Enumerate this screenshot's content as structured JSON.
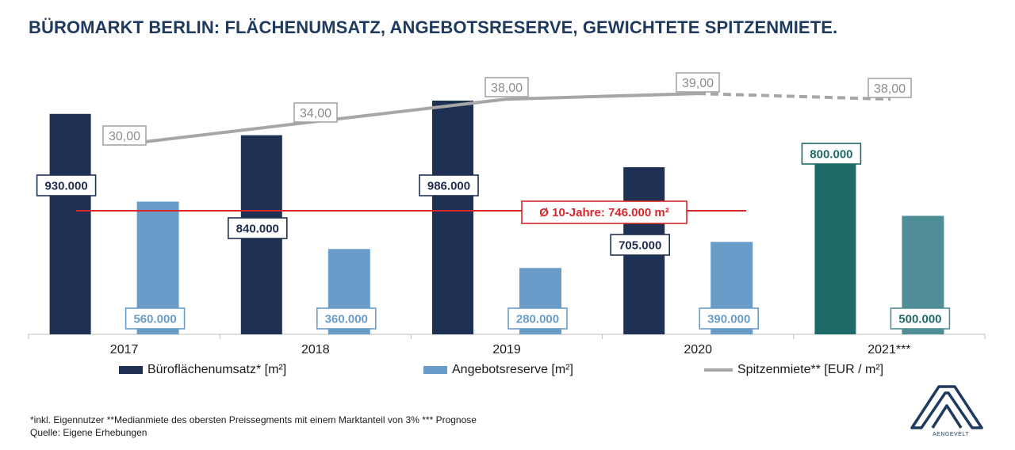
{
  "title": "BÜROMARKT BERLIN: FLÄCHENUMSATZ, ANGEBOTSRESERVE, GEWICHTETE SPITZENMIETE.",
  "chart_data": {
    "type": "bar",
    "categories": [
      "2017",
      "2018",
      "2019",
      "2020",
      "2021***"
    ],
    "series": [
      {
        "name": "Büroflächenumsatz* [m²]",
        "values": [
          930000,
          840000,
          986000,
          705000,
          800000
        ],
        "labels": [
          "930.000",
          "840.000",
          "986.000",
          "705.000",
          "800.000"
        ],
        "color": "#1f3153",
        "forecast_color": "#1e6a68"
      },
      {
        "name": "Angebotsreserve [m²]",
        "values": [
          560000,
          360000,
          280000,
          390000,
          500000
        ],
        "labels": [
          "560.000",
          "360.000",
          "280.000",
          "390.000",
          "500.000"
        ],
        "color": "#6a9cc9",
        "forecast_color": "#4f8e96"
      },
      {
        "name": "Spitzenmiete** [EUR / m²]",
        "type": "line",
        "values": [
          30.0,
          34.0,
          38.0,
          39.0,
          38.0
        ],
        "labels": [
          "30,00",
          "34,00",
          "38,00",
          "39,00",
          "38,00"
        ],
        "color": "#a6a6a6",
        "forecast_dashed": true
      }
    ],
    "reference_line": {
      "label": "Ø 10-Jahre: 746.000 m²",
      "value": 746000,
      "color": "#d9262a"
    },
    "forecast_category": "2021***",
    "grid": false,
    "legend": "bottom"
  },
  "footnotes": {
    "line1": "*inkl. Eigennutzer **Medianmiete des obersten Preissegments mit einem Marktanteil von 3% *** Prognose",
    "line2": "Quelle: Eigene Erhebungen"
  },
  "logo": {
    "text": "AENGEVELT",
    "icon": "aengevelt-logo-icon"
  }
}
